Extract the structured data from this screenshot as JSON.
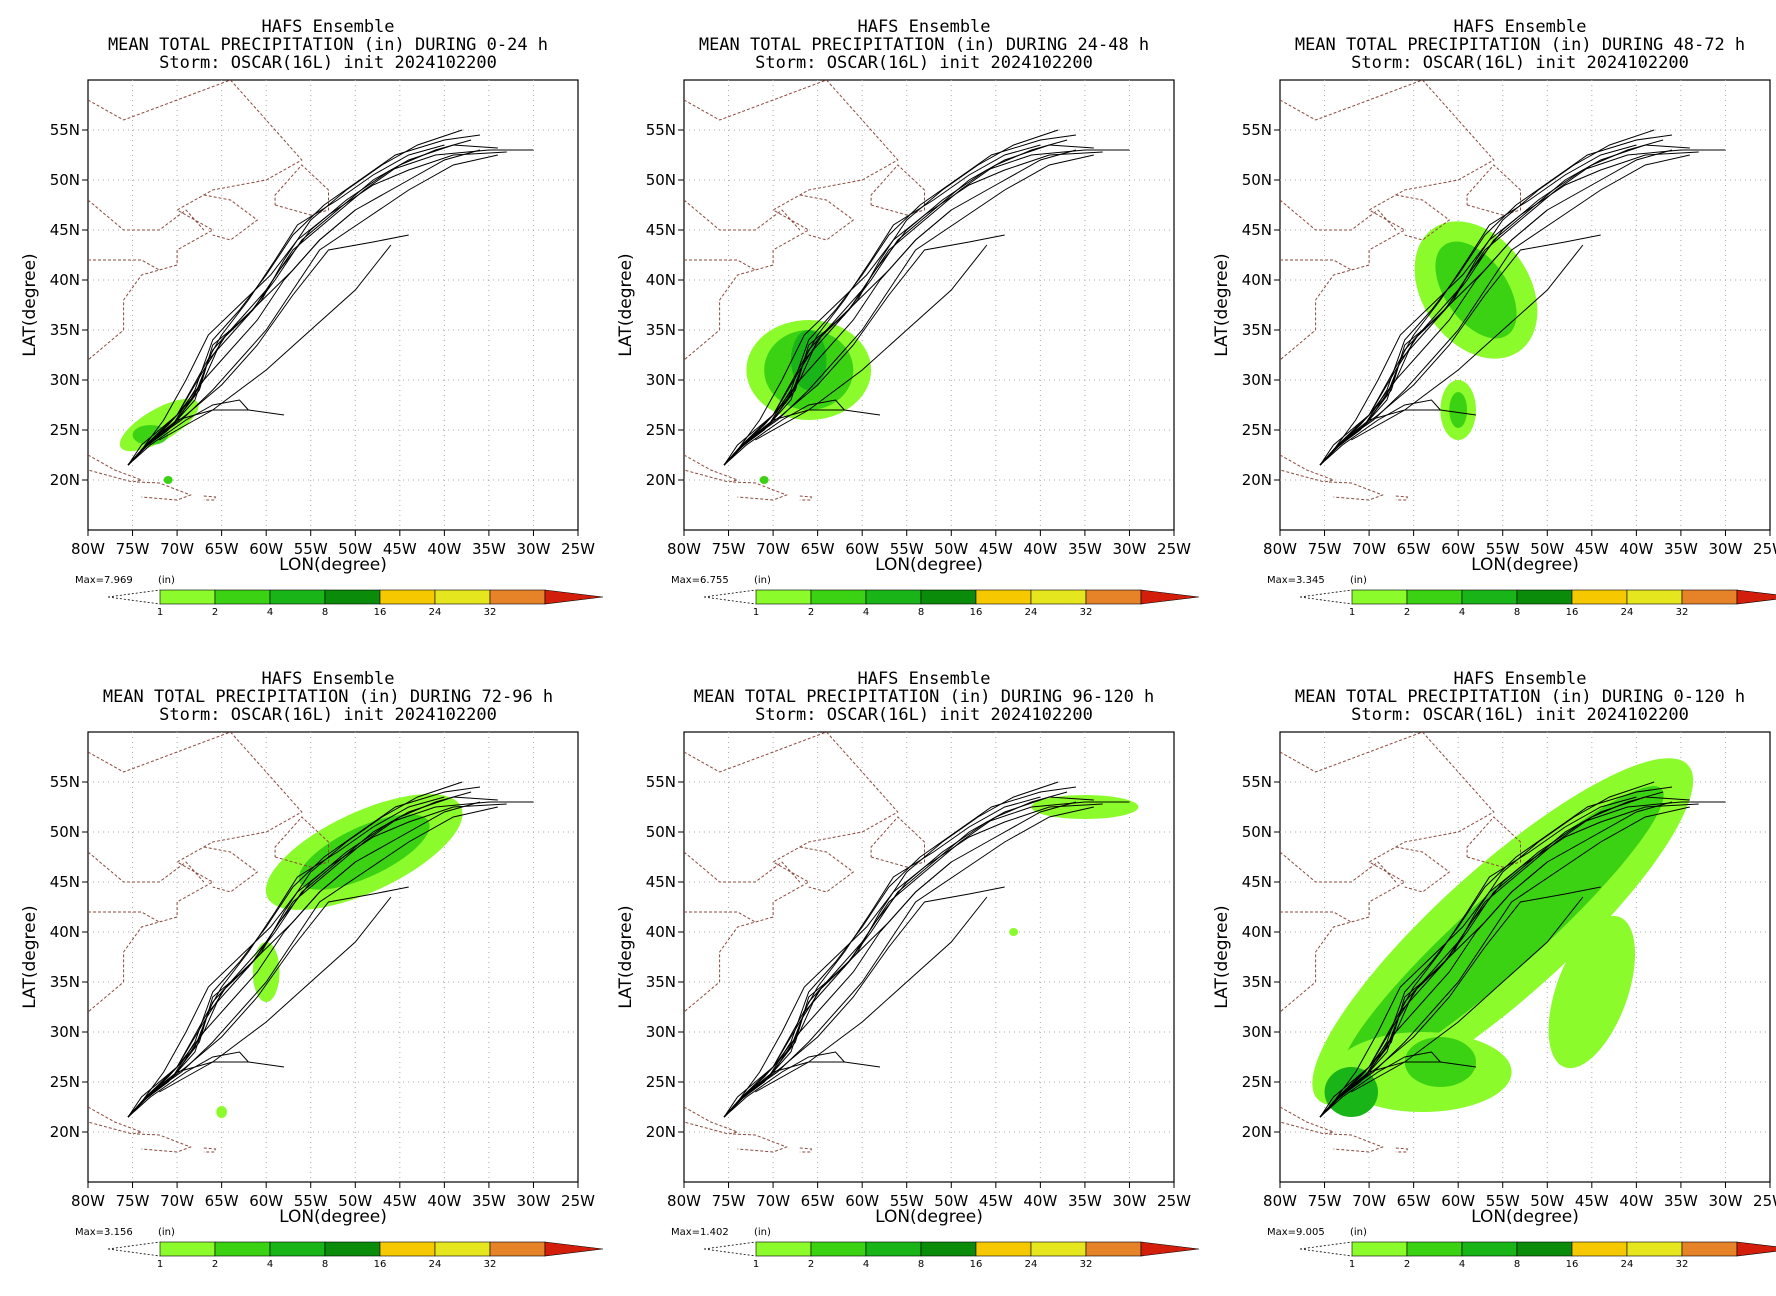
{
  "common": {
    "title_line1": "HAFS Ensemble",
    "title_line3": "Storm: OSCAR(16L) init 2024102200",
    "xlabel": "LON(degree)",
    "ylabel": "LAT(degree)",
    "x_ticks": [
      "80W",
      "75W",
      "70W",
      "65W",
      "60W",
      "55W",
      "50W",
      "45W",
      "40W",
      "35W",
      "30W",
      "25W"
    ],
    "y_ticks": [
      "20N",
      "25N",
      "30N",
      "35N",
      "40N",
      "45N",
      "50N",
      "55N"
    ],
    "unit_label": "(in)",
    "colorbar_ticks": [
      "1",
      "2",
      "4",
      "8",
      "16",
      "24",
      "32"
    ],
    "colorbar_colors": [
      "#8cfb2c",
      "#3cd214",
      "#18b418",
      "#0a8c0a",
      "#f5c800",
      "#e6e61e",
      "#e68228",
      "#d21e0a"
    ],
    "track_color": "#000000",
    "coast_color": "#8b4a3c"
  },
  "panels": [
    {
      "title_line2": "MEAN TOTAL PRECIPITATION (in) DURING  0-24 h",
      "max_label": "Max=7.969"
    },
    {
      "title_line2": "MEAN TOTAL PRECIPITATION (in) DURING 24-48 h",
      "max_label": "Max=6.755"
    },
    {
      "title_line2": "MEAN TOTAL PRECIPITATION (in) DURING 48-72 h",
      "max_label": "Max=3.345"
    },
    {
      "title_line2": "MEAN TOTAL PRECIPITATION (in) DURING 72-96 h",
      "max_label": "Max=3.156"
    },
    {
      "title_line2": "MEAN TOTAL PRECIPITATION (in) DURING 96-120 h",
      "max_label": "Max=1.402"
    },
    {
      "title_line2": "MEAN TOTAL PRECIPITATION (in) DURING 0-120 h",
      "max_label": "Max=9.005"
    }
  ],
  "map_data": {
    "lon_range": [
      -80,
      -25
    ],
    "lat_range": [
      15,
      60
    ],
    "tracks_lonlat": [
      [
        [
          -75.5,
          21.5
        ],
        [
          -74,
          23
        ],
        [
          -71,
          25.5
        ],
        [
          -68,
          28.5
        ],
        [
          -66,
          33
        ],
        [
          -63,
          36
        ],
        [
          -60,
          39
        ],
        [
          -57,
          43
        ],
        [
          -53,
          46
        ],
        [
          -49,
          49
        ],
        [
          -45,
          51.5
        ],
        [
          -41,
          53
        ],
        [
          -37,
          54
        ]
      ],
      [
        [
          -75.5,
          21.5
        ],
        [
          -74,
          23
        ],
        [
          -70.5,
          25.5
        ],
        [
          -67.5,
          29
        ],
        [
          -66,
          33.5
        ],
        [
          -62,
          36.5
        ],
        [
          -59,
          40
        ],
        [
          -56,
          44
        ],
        [
          -52,
          47
        ],
        [
          -48,
          50
        ],
        [
          -44,
          52
        ],
        [
          -39,
          53.5
        ],
        [
          -34,
          53.2
        ]
      ],
      [
        [
          -75.5,
          21.5
        ],
        [
          -73.5,
          23.5
        ],
        [
          -70,
          26
        ],
        [
          -67,
          30
        ],
        [
          -65,
          34
        ],
        [
          -61.5,
          37
        ],
        [
          -58.5,
          41
        ],
        [
          -55,
          45
        ],
        [
          -51,
          48
        ],
        [
          -46,
          51
        ],
        [
          -41,
          52.5
        ],
        [
          -35,
          53
        ],
        [
          -30,
          53
        ]
      ],
      [
        [
          -75.5,
          21.5
        ],
        [
          -74,
          23
        ],
        [
          -71,
          25
        ],
        [
          -68,
          28
        ],
        [
          -66.5,
          32
        ],
        [
          -63.5,
          35
        ],
        [
          -60.5,
          38
        ],
        [
          -58,
          42
        ],
        [
          -55,
          46
        ],
        [
          -51,
          49
        ],
        [
          -47,
          51.5
        ],
        [
          -43,
          53.5
        ],
        [
          -38,
          55
        ]
      ],
      [
        [
          -75.5,
          21.5
        ],
        [
          -73.5,
          23.3
        ],
        [
          -70.5,
          25.5
        ],
        [
          -68,
          29
        ],
        [
          -66,
          34
        ],
        [
          -63,
          37
        ],
        [
          -60,
          40.5
        ],
        [
          -57,
          44.5
        ],
        [
          -53.5,
          47.5
        ],
        [
          -49.5,
          50
        ],
        [
          -45.5,
          52.5
        ],
        [
          -40,
          54
        ],
        [
          -36,
          54.5
        ]
      ],
      [
        [
          -75.5,
          21.5
        ],
        [
          -74,
          23.5
        ],
        [
          -70,
          26.5
        ],
        [
          -67,
          31
        ],
        [
          -64.5,
          34.5
        ],
        [
          -61,
          37.5
        ],
        [
          -57,
          41
        ],
        [
          -54,
          44
        ],
        [
          -50,
          47
        ],
        [
          -45,
          49.5
        ],
        [
          -40,
          52
        ],
        [
          -36,
          53
        ]
      ],
      [
        [
          -75.5,
          21.5
        ],
        [
          -73.5,
          23.5
        ],
        [
          -69.5,
          26
        ],
        [
          -66,
          29
        ],
        [
          -63,
          32
        ],
        [
          -60,
          35
        ],
        [
          -57,
          39
        ],
        [
          -54,
          43
        ],
        [
          -49,
          46
        ],
        [
          -44,
          49
        ],
        [
          -39,
          51.5
        ],
        [
          -34,
          52.5
        ]
      ],
      [
        [
          -75.5,
          21.5
        ],
        [
          -73.5,
          23.5
        ],
        [
          -70,
          26.5
        ],
        [
          -67.5,
          30.5
        ],
        [
          -65,
          34.5
        ],
        [
          -62,
          38
        ],
        [
          -59,
          42
        ],
        [
          -56.5,
          45.5
        ],
        [
          -52,
          48
        ],
        [
          -48,
          50.5
        ],
        [
          -44,
          52.5
        ],
        [
          -40,
          53.5
        ]
      ],
      [
        [
          -75.5,
          21.5
        ],
        [
          -73.5,
          23.5
        ],
        [
          -70,
          26
        ],
        [
          -66,
          27
        ],
        [
          -62,
          27
        ],
        [
          -58,
          26.5
        ]
      ],
      [
        [
          -75.5,
          21.5
        ],
        [
          -73,
          23.5
        ],
        [
          -69,
          26
        ],
        [
          -66,
          27.5
        ],
        [
          -63,
          28
        ],
        [
          -62,
          27
        ]
      ],
      [
        [
          -72,
          24
        ],
        [
          -66,
          27
        ],
        [
          -60,
          31
        ],
        [
          -55,
          35
        ],
        [
          -50,
          39
        ],
        [
          -46,
          43.5
        ]
      ],
      [
        [
          -75.5,
          21.5
        ],
        [
          -73,
          23.8
        ],
        [
          -69,
          26.5
        ],
        [
          -65,
          29.5
        ],
        [
          -61,
          33.5
        ],
        [
          -57,
          38.5
        ],
        [
          -53,
          43
        ],
        [
          -48,
          43.8
        ],
        [
          -44,
          44.5
        ]
      ],
      [
        [
          -75.5,
          21.5
        ],
        [
          -73.5,
          23.5
        ],
        [
          -70,
          26.5
        ],
        [
          -67,
          30
        ],
        [
          -64,
          33
        ],
        [
          -61,
          36
        ],
        [
          -58,
          40
        ],
        [
          -54,
          44
        ],
        [
          -50,
          47
        ]
      ],
      [
        [
          -75.5,
          21.5
        ],
        [
          -74,
          23
        ],
        [
          -71.5,
          26
        ],
        [
          -69,
          30
        ],
        [
          -66.5,
          34.5
        ],
        [
          -63,
          37.5
        ],
        [
          -59.5,
          40.5
        ],
        [
          -56.5,
          44
        ],
        [
          -53,
          46.5
        ],
        [
          -48,
          49.5
        ],
        [
          -44,
          51
        ],
        [
          -39,
          52.5
        ],
        [
          -33,
          52.8
        ]
      ]
    ]
  }
}
